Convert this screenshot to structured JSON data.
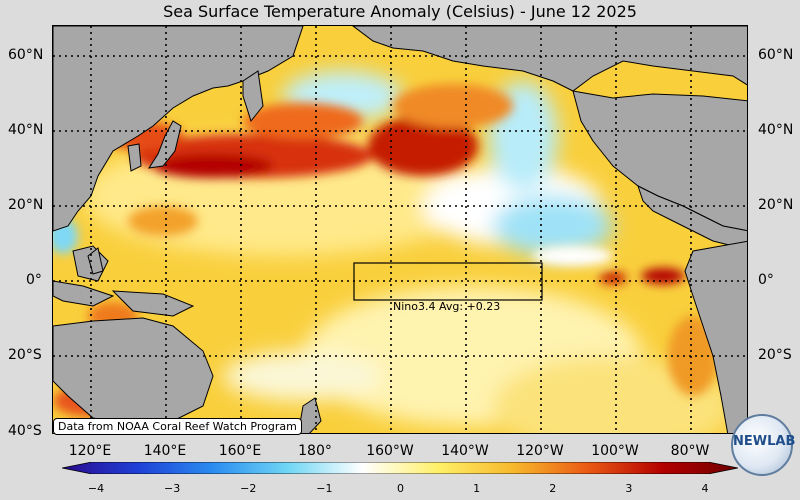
{
  "title": "Sea Surface Temperature Anomaly (Celsius) - June 12 2025",
  "map": {
    "lat_labels_left": [
      "60°N",
      "40°N",
      "20°N",
      "0°",
      "20°S",
      "40°S"
    ],
    "lat_labels_right": [
      "60°N",
      "40°N",
      "20°N",
      "0°",
      "20°S"
    ],
    "lon_labels": [
      "120°E",
      "140°E",
      "160°E",
      "180°",
      "160°W",
      "140°W",
      "120°W",
      "100°W",
      "80°W"
    ],
    "nino_label": "Nino3.4 Avg: +0.23",
    "credit": "Data from NOAA Coral Reef Watch Program",
    "logo_text": "NEWLAB"
  },
  "colorbar": {
    "ticks": [
      "−4",
      "−3",
      "−2",
      "−1",
      "0",
      "1",
      "2",
      "3",
      "4"
    ],
    "colors": [
      "#2a0a8c",
      "#1f3fd6",
      "#2b8cf0",
      "#6fd6f5",
      "#ffffff",
      "#fff06a",
      "#f7b92c",
      "#ea5a15",
      "#b30000",
      "#6e0000"
    ]
  }
}
